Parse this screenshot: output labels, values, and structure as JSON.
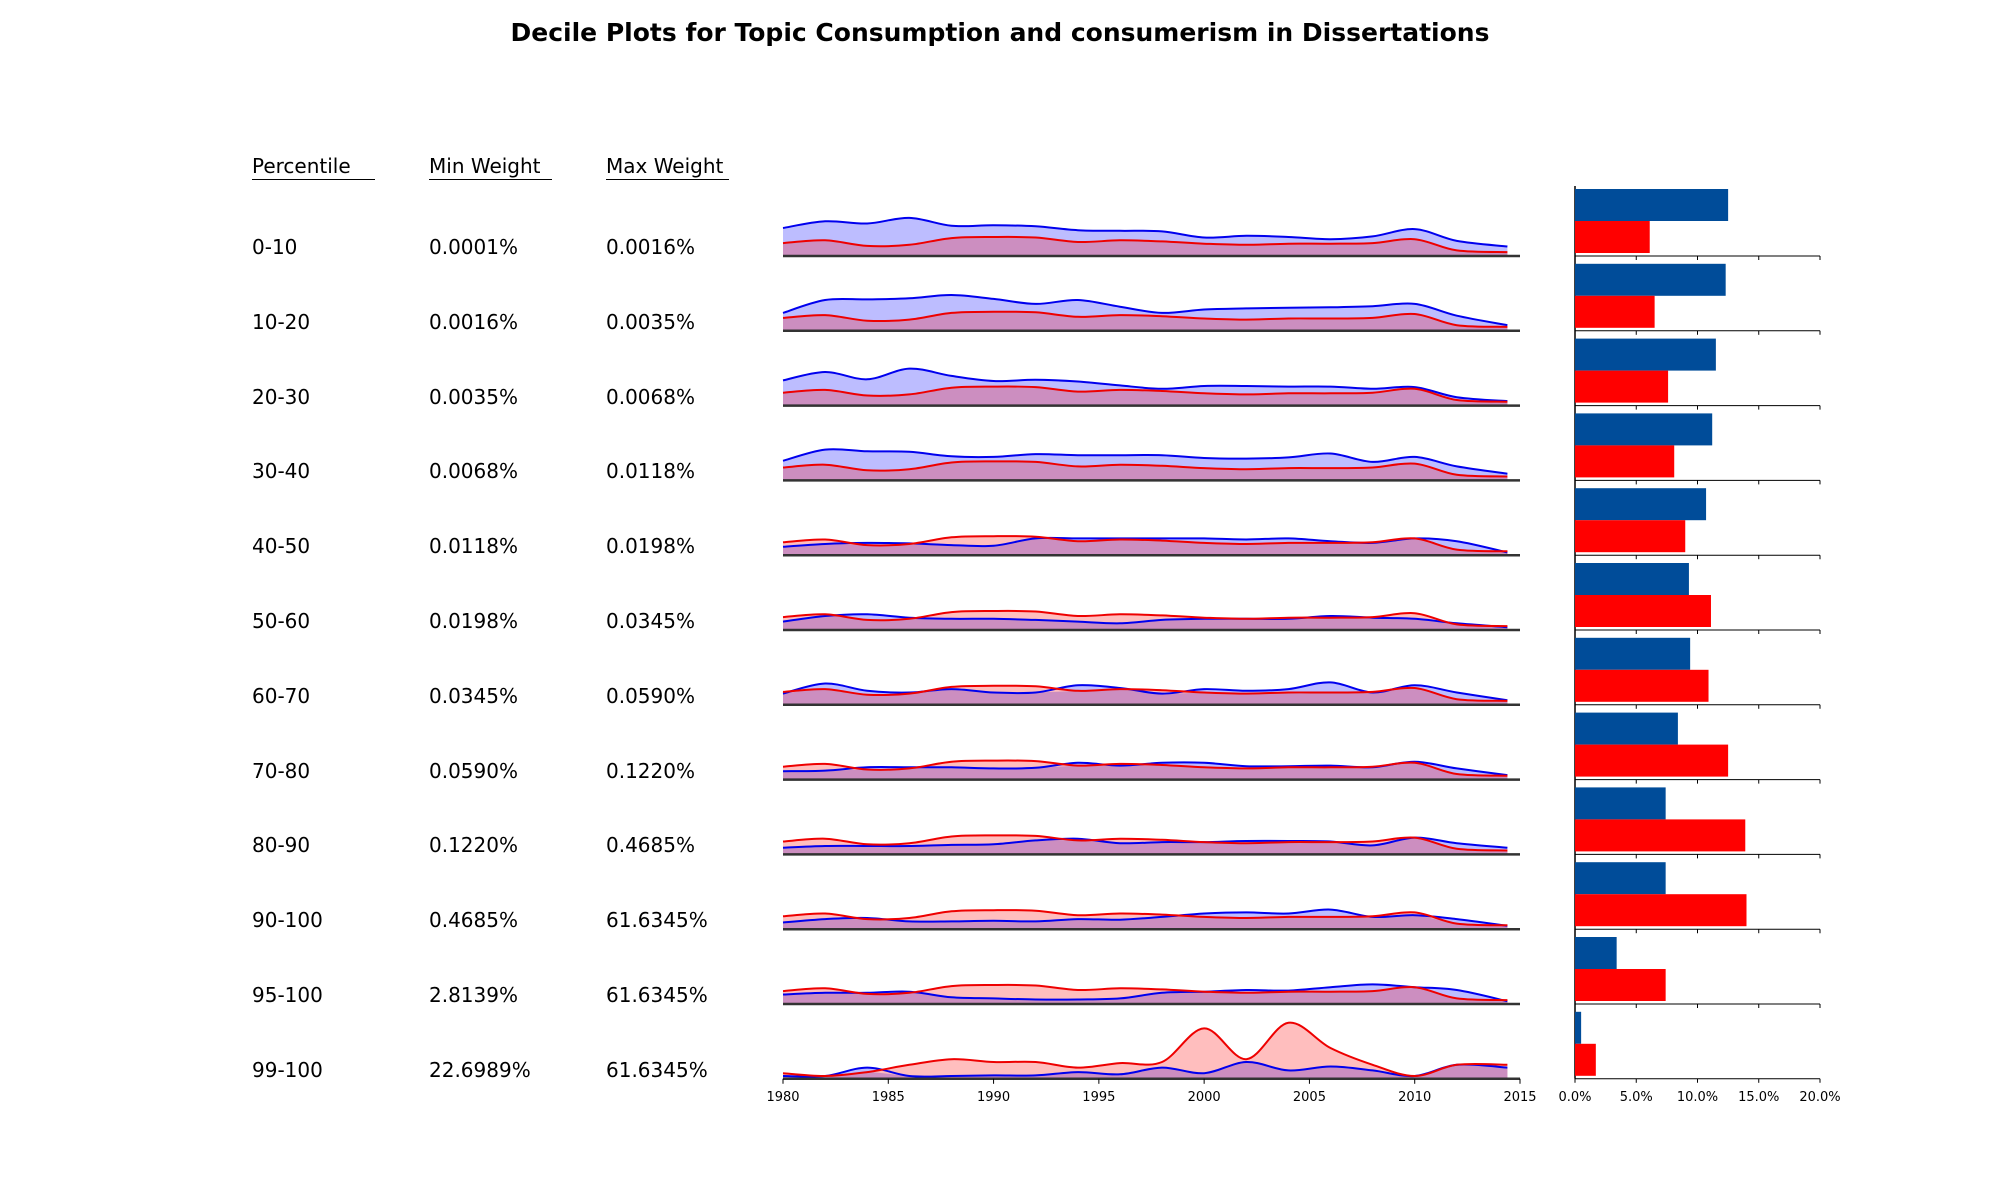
{
  "title": "Decile Plots for Topic Consumption and consumerism in Dissertations",
  "table": {
    "headers": [
      "Percentile",
      "Min Weight",
      "Max Weight"
    ],
    "rows": [
      [
        "0-10",
        "0.0001%",
        "0.0016%"
      ],
      [
        "10-20",
        "0.0016%",
        "0.0035%"
      ],
      [
        "20-30",
        "0.0035%",
        "0.0068%"
      ],
      [
        "30-40",
        "0.0068%",
        "0.0118%"
      ],
      [
        "40-50",
        "0.0118%",
        "0.0198%"
      ],
      [
        "50-60",
        "0.0198%",
        "0.0345%"
      ],
      [
        "60-70",
        "0.0345%",
        "0.0590%"
      ],
      [
        "70-80",
        "0.0590%",
        "0.1220%"
      ],
      [
        "80-90",
        "0.1220%",
        "0.4685%"
      ],
      [
        "90-100",
        "0.4685%",
        "61.6345%"
      ],
      [
        "95-100",
        "2.8139%",
        "61.6345%"
      ],
      [
        "99-100",
        "22.6989%",
        "61.6345%"
      ]
    ]
  },
  "colors": {
    "blue_line": "#0000ee",
    "blue_fill": "#b9b9ff",
    "red_line": "#ee0000",
    "red_fill": "#ffbbbb",
    "overlap_fill": "#cc8ec0",
    "bar_blue": "#004c99",
    "bar_red": "#ff0000"
  },
  "chart_data": [
    {
      "type": "area",
      "description_kind": "ridgeline density per decile",
      "x_ticks": [
        "1980",
        "1985",
        "1990",
        "1995",
        "2000",
        "2005",
        "2010",
        "2015"
      ],
      "xlim": [
        1980,
        2015
      ],
      "x": [
        1980,
        1982,
        1984,
        1986,
        1988,
        1990,
        1992,
        1994,
        1996,
        1998,
        2000,
        2002,
        2004,
        2006,
        2008,
        2010,
        2012,
        2014.4
      ],
      "rows": [
        {
          "blue": [
            0.5,
            0.62,
            0.58,
            0.68,
            0.54,
            0.55,
            0.53,
            0.46,
            0.45,
            0.44,
            0.33,
            0.36,
            0.34,
            0.3,
            0.35,
            0.48,
            0.27,
            0.17
          ],
          "red": [
            0.23,
            0.28,
            0.18,
            0.2,
            0.32,
            0.34,
            0.33,
            0.25,
            0.28,
            0.26,
            0.22,
            0.2,
            0.22,
            0.22,
            0.23,
            0.3,
            0.1,
            0.07
          ]
        },
        {
          "blue": [
            0.32,
            0.55,
            0.56,
            0.58,
            0.64,
            0.57,
            0.48,
            0.55,
            0.43,
            0.32,
            0.38,
            0.4,
            0.41,
            0.42,
            0.44,
            0.48,
            0.27,
            0.1
          ]
        },
        {
          "blue": [
            0.45,
            0.6,
            0.47,
            0.66,
            0.53,
            0.44,
            0.46,
            0.43,
            0.36,
            0.3,
            0.35,
            0.35,
            0.34,
            0.34,
            0.3,
            0.33,
            0.15,
            0.08
          ]
        },
        {
          "blue": [
            0.35,
            0.55,
            0.52,
            0.51,
            0.43,
            0.42,
            0.47,
            0.45,
            0.45,
            0.45,
            0.4,
            0.39,
            0.41,
            0.48,
            0.33,
            0.42,
            0.25,
            0.12
          ]
        },
        {
          "blue": [
            0.15,
            0.2,
            0.22,
            0.21,
            0.18,
            0.17,
            0.3,
            0.3,
            0.3,
            0.3,
            0.3,
            0.28,
            0.3,
            0.25,
            0.22,
            0.3,
            0.25,
            0.05
          ]
        },
        {
          "blue": [
            0.15,
            0.25,
            0.28,
            0.22,
            0.2,
            0.2,
            0.18,
            0.15,
            0.12,
            0.18,
            0.2,
            0.2,
            0.2,
            0.25,
            0.22,
            0.2,
            0.12,
            0.05
          ]
        },
        {
          "blue": [
            0.2,
            0.38,
            0.25,
            0.22,
            0.28,
            0.22,
            0.22,
            0.35,
            0.3,
            0.2,
            0.28,
            0.25,
            0.28,
            0.4,
            0.22,
            0.35,
            0.22,
            0.08
          ]
        },
        {
          "blue": [
            0.15,
            0.16,
            0.22,
            0.22,
            0.22,
            0.2,
            0.21,
            0.3,
            0.25,
            0.3,
            0.3,
            0.24,
            0.24,
            0.25,
            0.22,
            0.32,
            0.2,
            0.08
          ]
        },
        {
          "blue": [
            0.12,
            0.15,
            0.15,
            0.15,
            0.17,
            0.18,
            0.25,
            0.28,
            0.2,
            0.22,
            0.22,
            0.24,
            0.24,
            0.23,
            0.16,
            0.3,
            0.2,
            0.12
          ]
        },
        {
          "blue": [
            0.12,
            0.18,
            0.2,
            0.14,
            0.14,
            0.15,
            0.14,
            0.18,
            0.17,
            0.22,
            0.28,
            0.3,
            0.28,
            0.35,
            0.22,
            0.25,
            0.18,
            0.06
          ]
        },
        {
          "blue": [
            0.17,
            0.2,
            0.2,
            0.22,
            0.12,
            0.1,
            0.08,
            0.08,
            0.1,
            0.2,
            0.22,
            0.25,
            0.24,
            0.3,
            0.35,
            0.3,
            0.25,
            0.05
          ]
        },
        {
          "blue": [
            0.05,
            0.05,
            0.2,
            0.05,
            0.05,
            0.06,
            0.06,
            0.12,
            0.08,
            0.2,
            0.1,
            0.3,
            0.15,
            0.22,
            0.15,
            0.05,
            0.25,
            0.2
          ],
          "red": [
            0.1,
            0.05,
            0.12,
            0.25,
            0.35,
            0.3,
            0.3,
            0.2,
            0.28,
            0.3,
            0.9,
            0.35,
            1.0,
            0.55,
            0.25,
            0.05,
            0.25,
            0.25
          ]
        }
      ]
    },
    {
      "type": "bar",
      "orientation": "horizontal",
      "categories": [
        "0-10",
        "10-20",
        "20-30",
        "30-40",
        "40-50",
        "50-60",
        "60-70",
        "70-80",
        "80-90",
        "90-100",
        "95-100",
        "99-100"
      ],
      "x_ticks": [
        "0.0%",
        "5.0%",
        "10.0%",
        "15.0%",
        "20.0%"
      ],
      "xlim": [
        0,
        20
      ],
      "series": [
        {
          "values": [
            12.5,
            12.3,
            11.5,
            11.2,
            10.7,
            9.3,
            9.4,
            8.4,
            7.4,
            7.4,
            3.4,
            0.5
          ]
        },
        {
          "values": [
            6.1,
            6.5,
            7.6,
            8.1,
            9.0,
            11.1,
            10.9,
            12.5,
            13.9,
            14.0,
            7.4,
            1.7
          ]
        }
      ]
    }
  ]
}
